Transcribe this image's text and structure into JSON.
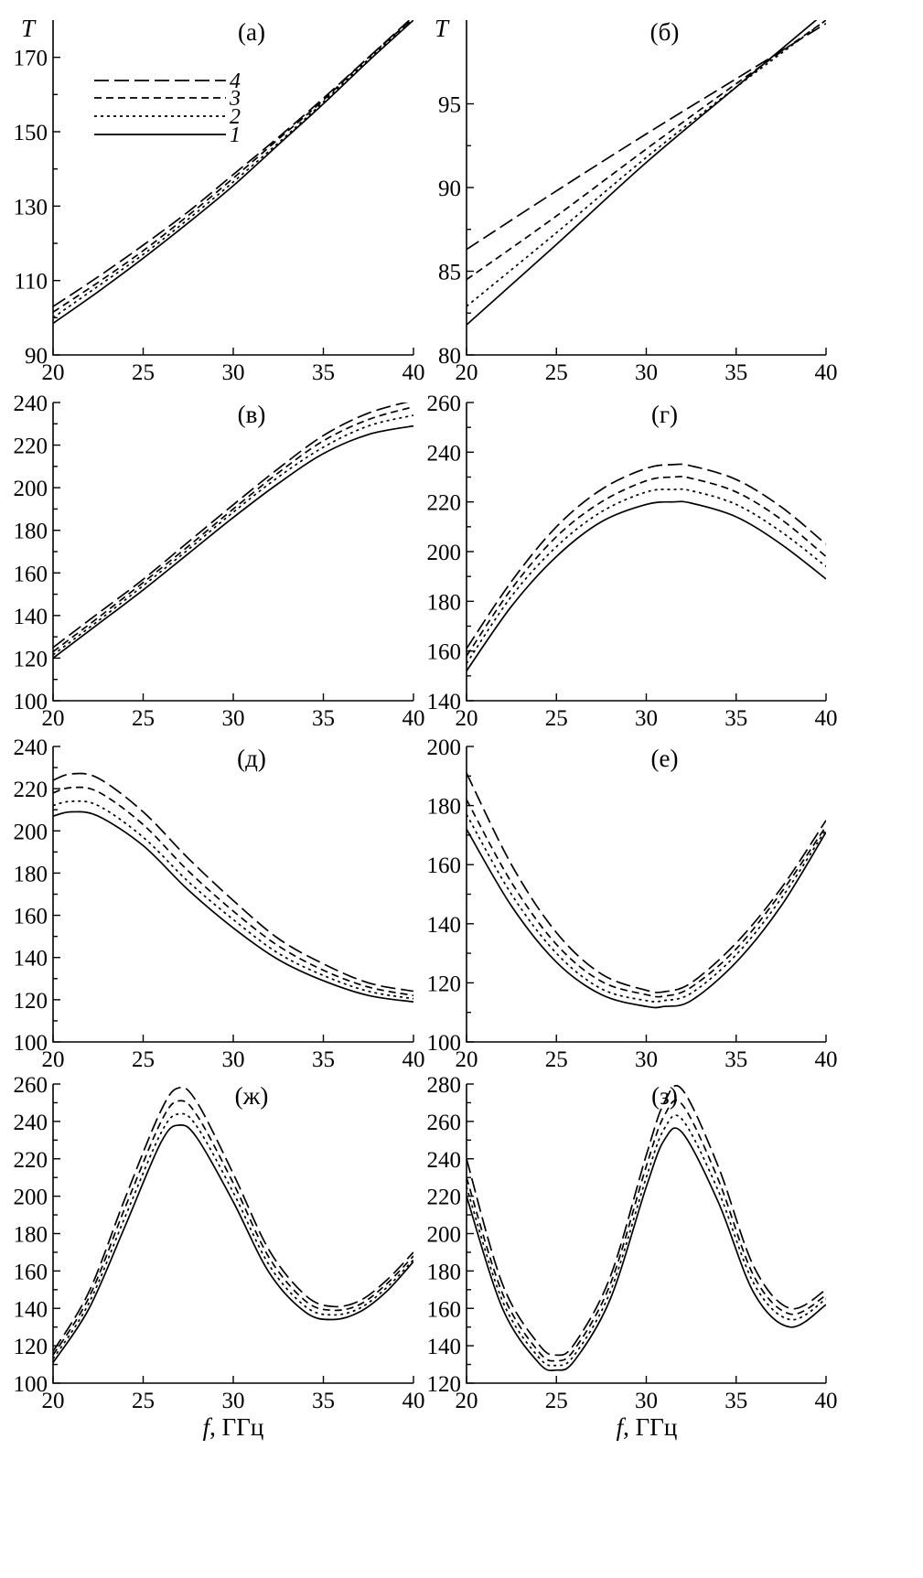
{
  "x_axis_label": {
    "symbol": "f",
    "unit": ", ГГц"
  },
  "legend": [
    {
      "label": "4",
      "dash": "dash-long"
    },
    {
      "label": "3",
      "dash": "dash-medium"
    },
    {
      "label": "2",
      "dash": "dot"
    },
    {
      "label": "1",
      "dash": "solid"
    }
  ],
  "chart_data": [
    {
      "type": "line",
      "title": "(а)",
      "ylabel": "T",
      "xlim": [
        20,
        40
      ],
      "ylim": [
        90,
        180
      ],
      "yticks": [
        90,
        110,
        130,
        150,
        170
      ],
      "xticks": [
        20,
        25,
        30,
        35,
        40
      ],
      "x": [
        20,
        22.5,
        25,
        27.5,
        30,
        32.5,
        35,
        37.5,
        40
      ],
      "series": [
        {
          "name": "1",
          "values": [
            98.5,
            107,
            116,
            125.5,
            135.5,
            146.5,
            157.5,
            169,
            180
          ]
        },
        {
          "name": "2",
          "values": [
            100,
            108.5,
            117,
            126.5,
            136.5,
            147,
            158,
            169.5,
            180.5
          ]
        },
        {
          "name": "3",
          "values": [
            101.5,
            109.5,
            118,
            127.5,
            137.5,
            148,
            158.5,
            170,
            180.5
          ]
        },
        {
          "name": "4",
          "values": [
            103,
            111,
            119.5,
            128.5,
            138.5,
            148.5,
            159,
            170,
            181
          ]
        }
      ]
    },
    {
      "type": "line",
      "title": "(б)",
      "ylabel": "T",
      "xlim": [
        20,
        40
      ],
      "ylim": [
        80,
        100
      ],
      "yticks": [
        80,
        85,
        90,
        95
      ],
      "xticks": [
        20,
        25,
        30,
        35,
        40
      ],
      "x": [
        20,
        25,
        30,
        35,
        40
      ],
      "series": [
        {
          "name": "1",
          "values": [
            81.8,
            86.6,
            91.5,
            96,
            100.5
          ]
        },
        {
          "name": "2",
          "values": [
            82.9,
            87.3,
            91.8,
            96,
            100
          ]
        },
        {
          "name": "3",
          "values": [
            84.5,
            88.3,
            92.3,
            96.2,
            100
          ]
        },
        {
          "name": "4",
          "values": [
            86.3,
            89.8,
            93.2,
            96.5,
            99.8
          ]
        }
      ]
    },
    {
      "type": "line",
      "title": "(в)",
      "ylabel": "",
      "xlim": [
        20,
        40
      ],
      "ylim": [
        100,
        240
      ],
      "yticks": [
        100,
        120,
        140,
        160,
        180,
        200,
        220,
        240
      ],
      "xticks": [
        20,
        25,
        30,
        35,
        40
      ],
      "x": [
        20,
        22.5,
        25,
        27.5,
        30,
        32.5,
        35,
        37.5,
        40
      ],
      "series": [
        {
          "name": "1",
          "values": [
            120,
            136,
            152,
            169,
            186,
            202,
            216,
            225,
            229
          ]
        },
        {
          "name": "2",
          "values": [
            121.5,
            137.5,
            154,
            171,
            188.5,
            205,
            219,
            229,
            234
          ]
        },
        {
          "name": "3",
          "values": [
            123,
            139,
            155.5,
            172.5,
            190,
            207,
            222,
            232,
            238
          ]
        },
        {
          "name": "4",
          "values": [
            125,
            141,
            157,
            174.5,
            192,
            209,
            224.5,
            235,
            241
          ]
        }
      ]
    },
    {
      "type": "line",
      "title": "(г)",
      "ylabel": "",
      "xlim": [
        20,
        40
      ],
      "ylim": [
        140,
        260
      ],
      "yticks": [
        140,
        160,
        180,
        200,
        220,
        240,
        260
      ],
      "xticks": [
        20,
        25,
        30,
        35,
        40
      ],
      "x": [
        20,
        22.5,
        25,
        27.5,
        30,
        31.5,
        32.5,
        35,
        37.5,
        40
      ],
      "series": [
        {
          "name": "1",
          "values": [
            152,
            178,
            198,
            212,
            219,
            220,
            219.5,
            214,
            203,
            189
          ]
        },
        {
          "name": "2",
          "values": [
            155,
            182,
            202,
            216,
            224,
            225,
            224.5,
            219,
            208,
            194
          ]
        },
        {
          "name": "3",
          "values": [
            158,
            185,
            206,
            220,
            228.5,
            230,
            229.5,
            224,
            213,
            198
          ]
        },
        {
          "name": "4",
          "values": [
            161,
            188,
            210,
            225,
            233.5,
            235,
            234.5,
            229,
            218,
            203
          ]
        }
      ]
    },
    {
      "type": "line",
      "title": "(д)",
      "ylabel": "",
      "xlim": [
        20,
        40
      ],
      "ylim": [
        100,
        240
      ],
      "yticks": [
        100,
        120,
        140,
        160,
        180,
        200,
        220,
        240
      ],
      "xticks": [
        20,
        25,
        30,
        35,
        40
      ],
      "x": [
        20,
        21,
        22.5,
        25,
        27.5,
        30,
        32.5,
        35,
        37.5,
        40
      ],
      "series": [
        {
          "name": "1",
          "values": [
            207,
            209,
            207,
            193,
            172,
            154,
            139,
            129,
            122,
            119
          ]
        },
        {
          "name": "2",
          "values": [
            212,
            214,
            212,
            197,
            176,
            158,
            142,
            131.5,
            124,
            120.5
          ]
        },
        {
          "name": "3",
          "values": [
            218,
            220.5,
            218.5,
            203,
            181,
            162,
            145.5,
            134,
            126,
            122
          ]
        },
        {
          "name": "4",
          "values": [
            224,
            227,
            225,
            209,
            187,
            167,
            149,
            137,
            128,
            124
          ]
        }
      ]
    },
    {
      "type": "line",
      "title": "(е)",
      "ylabel": "",
      "xlim": [
        20,
        40
      ],
      "ylim": [
        100,
        200
      ],
      "yticks": [
        100,
        120,
        140,
        160,
        180,
        200
      ],
      "xticks": [
        20,
        25,
        30,
        35,
        40
      ],
      "x": [
        20,
        22.5,
        25,
        27.5,
        30,
        31,
        32.5,
        35,
        37.5,
        40
      ],
      "series": [
        {
          "name": "1",
          "values": [
            172,
            146,
            127,
            116,
            112,
            112,
            114,
            127,
            146,
            171
          ]
        },
        {
          "name": "2",
          "values": [
            177,
            150,
            130,
            118,
            114,
            114,
            116.5,
            129.5,
            148.5,
            172
          ]
        },
        {
          "name": "3",
          "values": [
            182,
            154,
            133,
            120.5,
            116,
            115.5,
            118.5,
            131.5,
            150.5,
            173
          ]
        },
        {
          "name": "4",
          "values": [
            191,
            160,
            137,
            123,
            117.5,
            117,
            120,
            133.5,
            152,
            175
          ]
        }
      ]
    },
    {
      "type": "line",
      "title": "(ж)",
      "ylabel": "",
      "xlim": [
        20,
        40
      ],
      "ylim": [
        100,
        260
      ],
      "yticks": [
        100,
        120,
        140,
        160,
        180,
        200,
        220,
        240,
        260
      ],
      "xticks": [
        20,
        25,
        30,
        35,
        40
      ],
      "x": [
        20,
        22,
        24,
        26,
        27,
        28,
        30,
        32,
        34,
        35.5,
        37,
        38.5,
        40
      ],
      "series": [
        {
          "name": "1",
          "values": [
            111,
            140,
            184,
            229,
            238,
            231,
            197,
            159,
            138,
            134,
            138,
            149,
            165
          ]
        },
        {
          "name": "2",
          "values": [
            113,
            143,
            189,
            234,
            244,
            237,
            202,
            163,
            141,
            136.5,
            140,
            151,
            166
          ]
        },
        {
          "name": "3",
          "values": [
            115,
            146,
            194,
            240,
            251,
            243,
            207,
            167,
            144,
            139,
            142,
            153,
            168
          ]
        },
        {
          "name": "4",
          "values": [
            117,
            149,
            199,
            246,
            258,
            250,
            212,
            171,
            147,
            141,
            144,
            155,
            170
          ]
        }
      ]
    },
    {
      "type": "line",
      "title": "(з)",
      "ylabel": "",
      "xlim": [
        20,
        40
      ],
      "ylim": [
        120,
        280
      ],
      "yticks": [
        120,
        140,
        160,
        180,
        200,
        220,
        240,
        260,
        280
      ],
      "xticks": [
        20,
        25,
        30,
        35,
        40
      ],
      "x": [
        20,
        22,
        24,
        25,
        26,
        28,
        30,
        31,
        32,
        34,
        36,
        38,
        40
      ],
      "series": [
        {
          "name": "1",
          "values": [
            220,
            160,
            131,
            127,
            132,
            165,
            225,
            250,
            254,
            217,
            168,
            150,
            162
          ]
        },
        {
          "name": "2",
          "values": [
            225,
            164,
            134,
            129.5,
            135,
            169,
            230,
            256,
            261,
            223,
            173,
            154,
            165
          ]
        },
        {
          "name": "3",
          "values": [
            230,
            168,
            137,
            132,
            138,
            173,
            236,
            263,
            269,
            229,
            177,
            157,
            167
          ]
        },
        {
          "name": "4",
          "values": [
            240,
            173,
            141,
            135,
            141,
            177,
            242,
            270,
            277,
            236,
            182,
            160,
            170
          ]
        }
      ]
    }
  ]
}
